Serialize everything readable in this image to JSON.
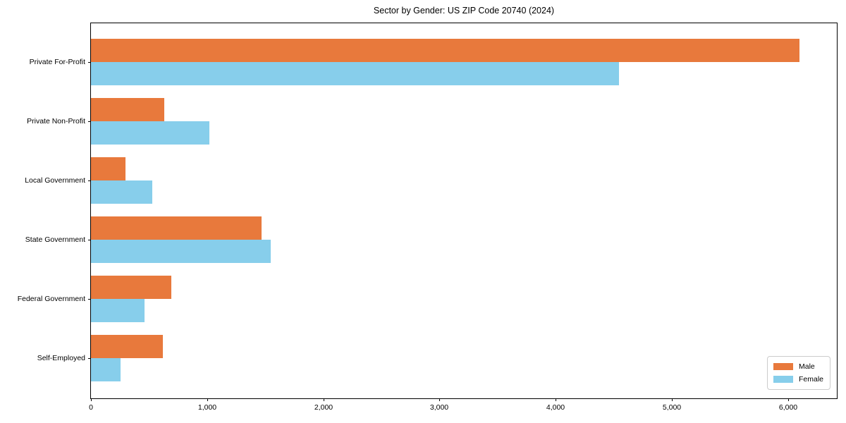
{
  "chart_data": {
    "type": "bar",
    "orientation": "horizontal",
    "title": "Sector by Gender: US ZIP Code 20740 (2024)",
    "categories": [
      "Private For-Profit",
      "Private Non-Profit",
      "Local Government",
      "State Government",
      "Federal Government",
      "Self-Employed"
    ],
    "series": [
      {
        "name": "Male",
        "color": "#e8793c",
        "values": [
          6100,
          630,
          300,
          1470,
          690,
          620
        ]
      },
      {
        "name": "Female",
        "color": "#87ceeb",
        "values": [
          4545,
          1020,
          530,
          1550,
          460,
          255
        ]
      }
    ],
    "xlim": [
      0,
      6420
    ],
    "x_ticks": [
      0,
      1000,
      2000,
      3000,
      4000,
      5000,
      6000
    ],
    "x_tick_labels": [
      "0",
      "1,000",
      "2,000",
      "3,000",
      "4,000",
      "5,000",
      "6,000"
    ],
    "xlabel": "",
    "ylabel": "",
    "grid": false,
    "legend": {
      "position": "lower right",
      "entries": [
        "Male",
        "Female"
      ]
    }
  }
}
